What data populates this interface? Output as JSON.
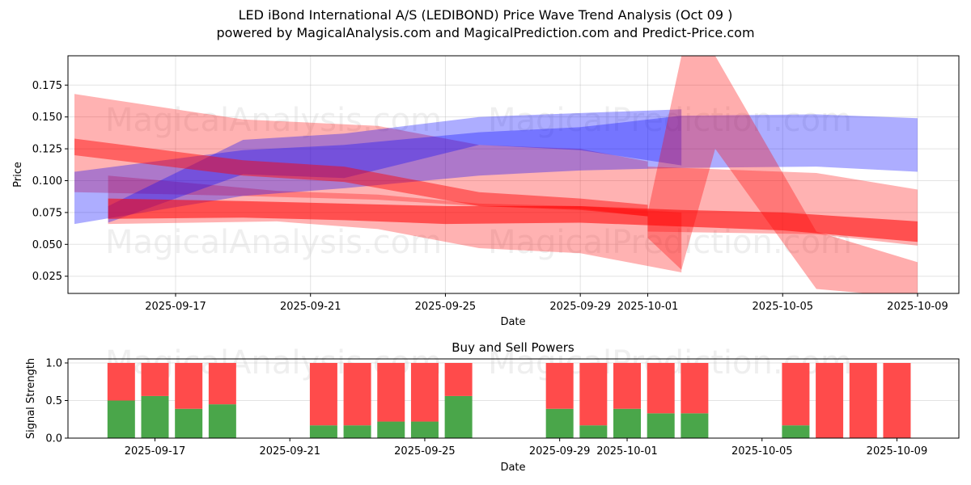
{
  "header": {
    "title_line1": "LED iBond International A/S (LEDIBOND) Price Wave Trend Analysis (Oct 09 )",
    "title_line2": "powered by MagicalAnalysis.com and MagicalPrediction.com and Predict-Price.com"
  },
  "watermarks": [
    "MagicalAnalysis.com",
    "MagicalPrediction.com"
  ],
  "colors": {
    "buy": "#4aa64a",
    "sell": "#ff4b4b",
    "band_red": "#ff0000",
    "band_blue": "#0000ff"
  },
  "chart_data": [
    {
      "type": "area",
      "title": "Price Wave Trend Analysis",
      "xlabel": "Date",
      "ylabel": "Price",
      "ylim": [
        0.0115,
        0.198
      ],
      "xlim": [
        "2025-09-13.8",
        "2025-10-10.2"
      ],
      "grid": true,
      "x_ticks": [
        "2025-09-17",
        "2025-09-21",
        "2025-09-25",
        "2025-09-29",
        "2025-10-01",
        "2025-10-05",
        "2025-10-09"
      ],
      "y_ticks": [
        "0.025",
        "0.050",
        "0.075",
        "0.100",
        "0.125",
        "0.150",
        "0.175"
      ],
      "bands": [
        {
          "name": "wide-red-upper",
          "color": "red",
          "opacity": 0.3,
          "x": [
            "2025-09-14",
            "2025-09-19",
            "2025-09-23",
            "2025-09-26",
            "2025-09-29",
            "2025-10-01"
          ],
          "upper": [
            0.168,
            0.148,
            0.143,
            0.128,
            0.125,
            0.115
          ],
          "lower": [
            0.091,
            0.088,
            0.085,
            0.08,
            0.078,
            0.072
          ]
        },
        {
          "name": "wide-red-lower",
          "color": "red",
          "opacity": 0.3,
          "x": [
            "2025-09-15",
            "2025-09-20",
            "2025-09-23",
            "2025-09-26",
            "2025-09-29",
            "2025-10-02"
          ],
          "upper": [
            0.104,
            0.092,
            0.089,
            0.082,
            0.08,
            0.075
          ],
          "lower": [
            0.066,
            0.068,
            0.062,
            0.047,
            0.043,
            0.028
          ]
        },
        {
          "name": "blue-lower",
          "color": "blue",
          "opacity": 0.32,
          "x": [
            "2025-09-14",
            "2025-09-19",
            "2025-09-22",
            "2025-09-26",
            "2025-09-29",
            "2025-10-02",
            "2025-10-06",
            "2025-10-09"
          ],
          "upper": [
            0.107,
            0.124,
            0.128,
            0.138,
            0.142,
            0.151,
            0.152,
            0.149
          ],
          "lower": [
            0.066,
            0.088,
            0.094,
            0.104,
            0.108,
            0.11,
            0.111,
            0.107
          ]
        },
        {
          "name": "blue-upper",
          "color": "blue",
          "opacity": 0.32,
          "x": [
            "2025-09-15",
            "2025-09-19",
            "2025-09-22",
            "2025-09-26",
            "2025-09-29",
            "2025-10-02"
          ],
          "upper": [
            0.08,
            0.132,
            0.137,
            0.15,
            0.153,
            0.156
          ],
          "lower": [
            0.067,
            0.105,
            0.102,
            0.128,
            0.124,
            0.112
          ]
        },
        {
          "name": "red-mid-descending",
          "color": "red",
          "opacity": 0.45,
          "x": [
            "2025-09-14",
            "2025-09-19",
            "2025-09-22",
            "2025-09-26",
            "2025-09-29",
            "2025-10-01"
          ],
          "upper": [
            0.133,
            0.116,
            0.111,
            0.091,
            0.086,
            0.081
          ],
          "lower": [
            0.12,
            0.104,
            0.099,
            0.08,
            0.077,
            0.072
          ]
        },
        {
          "name": "red-core",
          "color": "red",
          "opacity": 0.55,
          "x": [
            "2025-09-15",
            "2025-09-19",
            "2025-09-22",
            "2025-09-25",
            "2025-09-29",
            "2025-10-02",
            "2025-10-05",
            "2025-10-09"
          ],
          "upper": [
            0.086,
            0.084,
            0.082,
            0.08,
            0.08,
            0.077,
            0.075,
            0.068
          ],
          "lower": [
            0.07,
            0.071,
            0.069,
            0.066,
            0.067,
            0.064,
            0.061,
            0.052
          ]
        },
        {
          "name": "red-right-wide",
          "color": "red",
          "opacity": 0.3,
          "x": [
            "2025-10-01",
            "2025-10-06",
            "2025-10-09"
          ],
          "upper": [
            0.111,
            0.106,
            0.093
          ],
          "lower": [
            0.06,
            0.058,
            0.049
          ]
        },
        {
          "name": "red-spike",
          "color": "red",
          "opacity": 0.32,
          "x": [
            "2025-10-01",
            "2025-10-02",
            "2025-10-03",
            "2025-10-06",
            "2025-10-09"
          ],
          "upper": [
            0.075,
            0.198,
            0.198,
            0.06,
            0.036
          ],
          "lower": [
            0.055,
            0.03,
            0.125,
            0.015,
            0.008
          ]
        }
      ]
    },
    {
      "type": "bar",
      "title": "Buy and Sell Powers",
      "xlabel": "Date",
      "ylabel": "Signal Strength",
      "ylim": [
        0,
        1.05
      ],
      "y_ticks": [
        "0.0",
        "0.5",
        "1.0"
      ],
      "x_ticks": [
        "2025-09-17",
        "2025-09-21",
        "2025-09-25",
        "2025-09-29",
        "2025-10-01",
        "2025-10-05",
        "2025-10-09"
      ],
      "stacked": true,
      "categories": [
        "2025-09-16",
        "2025-09-17",
        "2025-09-18",
        "2025-09-19",
        "2025-09-22",
        "2025-09-23",
        "2025-09-24",
        "2025-09-25",
        "2025-09-26",
        "2025-09-29",
        "2025-09-30",
        "2025-10-01",
        "2025-10-02",
        "2025-10-03",
        "2025-10-06",
        "2025-10-07",
        "2025-10-08",
        "2025-10-09"
      ],
      "series": [
        {
          "name": "Buy",
          "values": [
            0.5,
            0.56,
            0.39,
            0.45,
            0.17,
            0.17,
            0.22,
            0.22,
            0.56,
            0.39,
            0.17,
            0.39,
            0.33,
            0.33,
            0.17,
            0.0,
            0.0,
            0.0
          ]
        },
        {
          "name": "Sell",
          "values": [
            0.5,
            0.44,
            0.61,
            0.55,
            0.83,
            0.83,
            0.78,
            0.78,
            0.44,
            0.61,
            0.83,
            0.61,
            0.67,
            0.67,
            0.83,
            1.0,
            1.0,
            1.0
          ]
        }
      ]
    }
  ]
}
